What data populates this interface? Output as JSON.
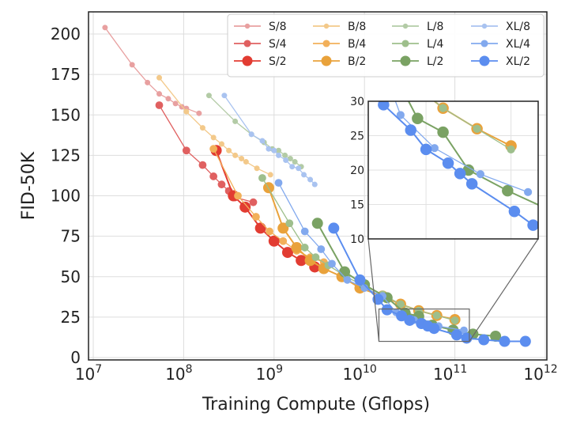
{
  "chart_data": {
    "type": "line",
    "title": "",
    "xlabel": "Training Compute (Gflops)",
    "ylabel": "FID-50K",
    "xscale": "log",
    "xlim_log10": [
      7,
      12
    ],
    "ylim": [
      0,
      210
    ],
    "x_ticks": [
      {
        "base": "10",
        "exp": "7"
      },
      {
        "base": "10",
        "exp": "8"
      },
      {
        "base": "10",
        "exp": "9"
      },
      {
        "base": "10",
        "exp": "10"
      },
      {
        "base": "10",
        "exp": "11"
      },
      {
        "base": "10",
        "exp": "12"
      }
    ],
    "y_ticks": [
      "0",
      "25",
      "50",
      "75",
      "100",
      "125",
      "150",
      "175",
      "200"
    ],
    "grid": true,
    "legend_position": "top-right",
    "inset": {
      "xlim_log10": [
        10.16,
        11.16
      ],
      "ylim": [
        10,
        30
      ],
      "y_ticks": [
        "10",
        "15",
        "20",
        "25",
        "30"
      ]
    },
    "series": [
      {
        "name": "S/8",
        "color": "#e8a0a0",
        "size": 2.5,
        "points": [
          [
            7.13,
            204
          ],
          [
            7.43,
            181
          ],
          [
            7.6,
            170
          ],
          [
            7.73,
            163
          ],
          [
            7.83,
            160
          ],
          [
            7.91,
            157
          ],
          [
            7.98,
            155
          ],
          [
            8.03,
            154
          ],
          [
            8.17,
            151
          ]
        ]
      },
      {
        "name": "S/4",
        "color": "#e06060",
        "size": 3.5,
        "points": [
          [
            7.73,
            156
          ],
          [
            8.03,
            128
          ],
          [
            8.21,
            119
          ],
          [
            8.33,
            112
          ],
          [
            8.42,
            107
          ],
          [
            8.5,
            103
          ],
          [
            8.57,
            99
          ],
          [
            8.77,
            96
          ]
        ]
      },
      {
        "name": "S/2",
        "color": "#e23c32",
        "size": 5,
        "points": [
          [
            8.36,
            128
          ],
          [
            8.55,
            100
          ],
          [
            8.68,
            93
          ],
          [
            8.85,
            80
          ],
          [
            9.0,
            72
          ],
          [
            9.15,
            65
          ],
          [
            9.3,
            60
          ],
          [
            9.45,
            56
          ]
        ]
      },
      {
        "name": "B/8",
        "color": "#f3c98a",
        "size": 2.5,
        "points": [
          [
            7.73,
            173
          ],
          [
            8.03,
            152
          ],
          [
            8.21,
            142
          ],
          [
            8.33,
            136
          ],
          [
            8.42,
            132
          ],
          [
            8.5,
            128
          ],
          [
            8.57,
            125
          ],
          [
            8.64,
            123
          ],
          [
            8.69,
            121
          ],
          [
            8.81,
            117
          ],
          [
            8.96,
            113
          ]
        ]
      },
      {
        "name": "B/4",
        "color": "#f2b05a",
        "size": 3.5,
        "points": [
          [
            8.33,
            129
          ],
          [
            8.6,
            100
          ],
          [
            8.8,
            87
          ],
          [
            8.95,
            78
          ],
          [
            9.1,
            72
          ],
          [
            9.25,
            66
          ],
          [
            9.4,
            62
          ],
          [
            9.55,
            59
          ]
        ]
      },
      {
        "name": "B/2",
        "color": "#e9a23b",
        "size": 5,
        "points": [
          [
            8.94,
            105
          ],
          [
            9.1,
            80
          ],
          [
            9.25,
            68
          ],
          [
            9.4,
            60
          ],
          [
            9.55,
            55
          ],
          [
            9.75,
            50
          ],
          [
            9.95,
            43
          ],
          [
            10.2,
            38
          ],
          [
            10.4,
            33
          ],
          [
            10.6,
            29
          ],
          [
            10.8,
            26
          ],
          [
            11.0,
            23.5
          ]
        ]
      },
      {
        "name": "L/8",
        "color": "#b3cba6",
        "size": 2.5,
        "points": [
          [
            8.28,
            162
          ],
          [
            8.57,
            146
          ],
          [
            8.75,
            138
          ],
          [
            8.89,
            133
          ],
          [
            8.98,
            129
          ],
          [
            9.05,
            128
          ],
          [
            9.12,
            125
          ],
          [
            9.18,
            123
          ],
          [
            9.23,
            121
          ],
          [
            9.3,
            118
          ]
        ]
      },
      {
        "name": "L/4",
        "color": "#9ebf8c",
        "size": 3.5,
        "points": [
          [
            8.87,
            111
          ],
          [
            9.17,
            83
          ],
          [
            9.34,
            68
          ],
          [
            9.46,
            62
          ],
          [
            9.6,
            57
          ],
          [
            9.8,
            50
          ],
          [
            10.0,
            44
          ],
          [
            10.2,
            39
          ],
          [
            10.4,
            33
          ],
          [
            10.6,
            29
          ],
          [
            10.8,
            26
          ],
          [
            11.0,
            23
          ]
        ]
      },
      {
        "name": "L/2",
        "color": "#7aa263",
        "size": 5,
        "points": [
          [
            9.48,
            83
          ],
          [
            9.78,
            53
          ],
          [
            10.0,
            45
          ],
          [
            10.25,
            37
          ],
          [
            10.45,
            27.5
          ],
          [
            10.6,
            25.5
          ],
          [
            10.75,
            20
          ],
          [
            10.98,
            17
          ],
          [
            11.2,
            14.5
          ],
          [
            11.45,
            13.2
          ]
        ]
      },
      {
        "name": "XL/8",
        "color": "#a9c3f0",
        "size": 2.5,
        "points": [
          [
            8.45,
            162
          ],
          [
            8.75,
            138
          ],
          [
            8.87,
            134
          ],
          [
            8.94,
            129
          ],
          [
            9.0,
            128
          ],
          [
            9.05,
            125
          ],
          [
            9.13,
            122
          ],
          [
            9.2,
            118
          ],
          [
            9.27,
            117
          ],
          [
            9.33,
            113
          ],
          [
            9.4,
            110
          ],
          [
            9.45,
            107
          ]
        ]
      },
      {
        "name": "XL/4",
        "color": "#82a9ee",
        "size": 3.5,
        "points": [
          [
            9.05,
            108
          ],
          [
            9.34,
            78
          ],
          [
            9.52,
            67
          ],
          [
            9.64,
            58
          ],
          [
            9.81,
            48
          ],
          [
            10.0,
            43
          ],
          [
            10.2,
            38
          ],
          [
            10.35,
            28
          ],
          [
            10.55,
            23.2
          ],
          [
            10.82,
            19.4
          ],
          [
            11.1,
            16.8
          ]
        ]
      },
      {
        "name": "XL/2",
        "color": "#5b8def",
        "size": 5,
        "points": [
          [
            9.66,
            80
          ],
          [
            9.95,
            48
          ],
          [
            10.15,
            36
          ],
          [
            10.25,
            29.5
          ],
          [
            10.41,
            25.8
          ],
          [
            10.5,
            23
          ],
          [
            10.63,
            21
          ],
          [
            10.7,
            19.5
          ],
          [
            10.77,
            18
          ],
          [
            11.02,
            14
          ],
          [
            11.13,
            12
          ],
          [
            11.32,
            11
          ],
          [
            11.55,
            10
          ],
          [
            11.78,
            10
          ]
        ]
      }
    ]
  }
}
